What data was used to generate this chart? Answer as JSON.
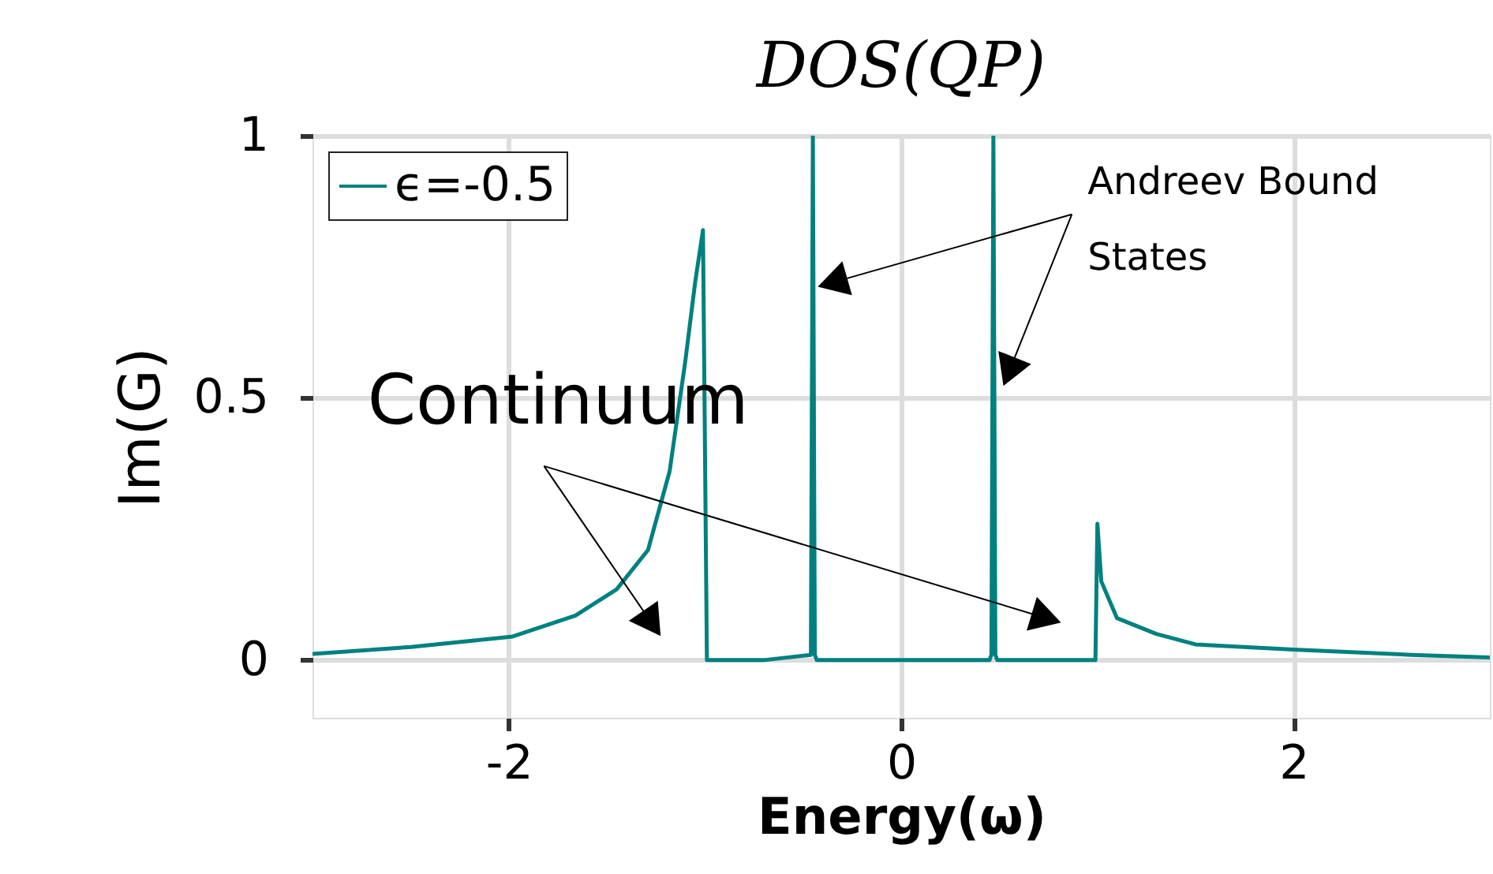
{
  "chart_data": {
    "type": "line",
    "title": "DOS(QP)",
    "xlabel": "Energy(ω)",
    "ylabel": "Im(G)",
    "xlim": [
      -3,
      3
    ],
    "ylim": [
      -0.11,
      1
    ],
    "xticks": [
      -2,
      0,
      2
    ],
    "yticks": [
      0,
      0.5,
      1
    ],
    "grid": true,
    "legend": "top left",
    "series": [
      {
        "name": "ϵ=-0.5",
        "color": "#008080",
        "x": [
          -3,
          -2.5,
          -1.98,
          -1.66,
          -1.45,
          -1.29,
          -1.18,
          -1.1,
          -1.05,
          -1.01,
          -0.99,
          -0.7,
          -0.46,
          -0.45,
          -0.44,
          -0.43,
          0,
          0.45,
          0.46,
          0.47,
          0.48,
          0.49,
          0.99,
          1.0,
          1.02,
          1.1,
          1.3,
          1.5,
          2,
          2.6,
          3
        ],
        "values": [
          0.012,
          0.025,
          0.045,
          0.085,
          0.135,
          0.21,
          0.36,
          0.57,
          0.72,
          0.82,
          0,
          0,
          0.01,
          1,
          0.01,
          0,
          0,
          0,
          0.01,
          1,
          0.01,
          0,
          0,
          0.26,
          0.15,
          0.08,
          0.05,
          0.03,
          0.02,
          0.01,
          0.005
        ]
      }
    ],
    "annotations": [
      "Continuum",
      "Andreev Bound States"
    ]
  }
}
